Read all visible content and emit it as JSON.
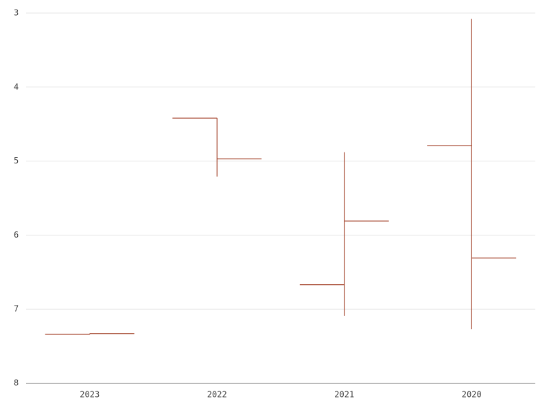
{
  "chart_data": {
    "type": "ohlc",
    "categories": [
      "2023",
      "2022",
      "2021",
      "2020"
    ],
    "series": [
      {
        "color": "#a3422a",
        "open": [
          7.34,
          4.42,
          6.67,
          4.79
        ],
        "high": [
          7.34,
          5.21,
          7.09,
          7.27
        ],
        "low": [
          7.33,
          4.42,
          4.88,
          3.08
        ],
        "close": [
          7.33,
          4.97,
          5.81,
          6.31
        ]
      }
    ],
    "ylim": [
      3,
      8
    ],
    "yticks": [
      3,
      4,
      5,
      6,
      7,
      8
    ],
    "y_reversed": true,
    "grid": true
  }
}
